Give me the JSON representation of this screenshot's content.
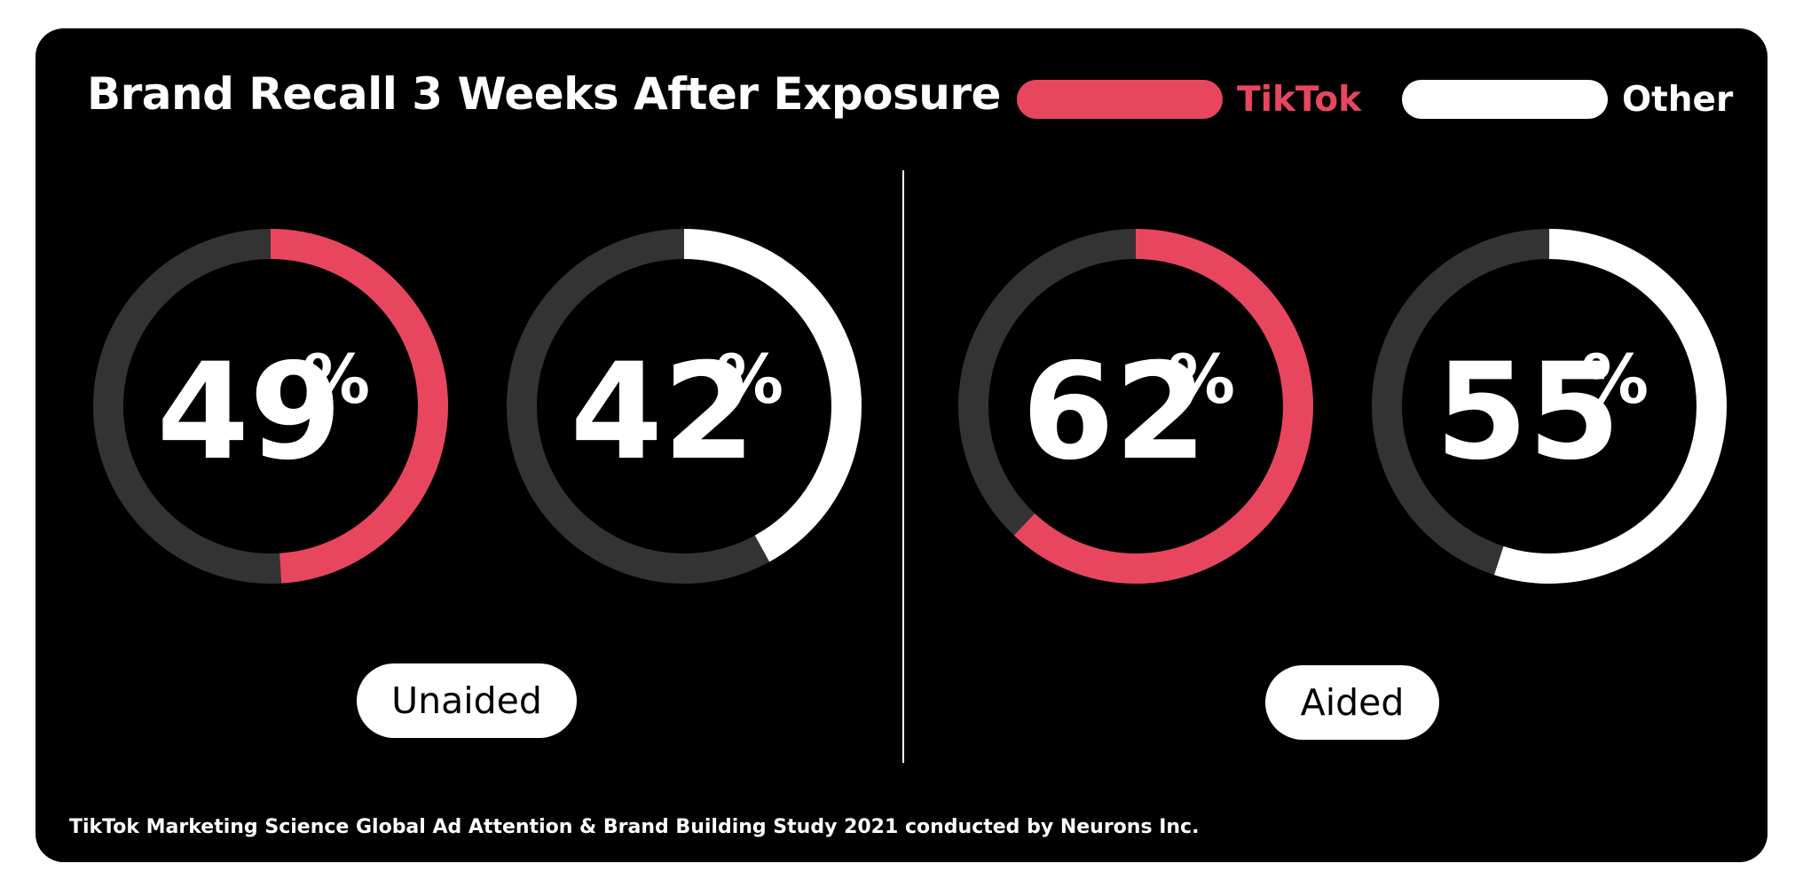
{
  "chart_data": {
    "type": "donut",
    "title": "Brand Recall 3 Weeks After Exposure",
    "legend": {
      "placement": "top-right",
      "entries": [
        {
          "name": "TikTok",
          "color": "#e8465f"
        },
        {
          "name": "Other",
          "color": "#ffffff"
        }
      ]
    },
    "groups": [
      {
        "label": "Unaided",
        "values": [
          {
            "series": "TikTok",
            "value": 49,
            "display": "49",
            "unit": "%"
          },
          {
            "series": "Other",
            "value": 42,
            "display": "42",
            "unit": "%"
          }
        ]
      },
      {
        "label": "Aided",
        "values": [
          {
            "series": "TikTok",
            "value": 62,
            "display": "62",
            "unit": "%"
          },
          {
            "series": "Other",
            "value": 55,
            "display": "55",
            "unit": "%"
          }
        ]
      }
    ],
    "track_color": "#333333",
    "max_value": 100,
    "source": "TikTok Marketing Science Global Ad Attention & Brand Building Study 2021 conducted by Neurons Inc."
  }
}
